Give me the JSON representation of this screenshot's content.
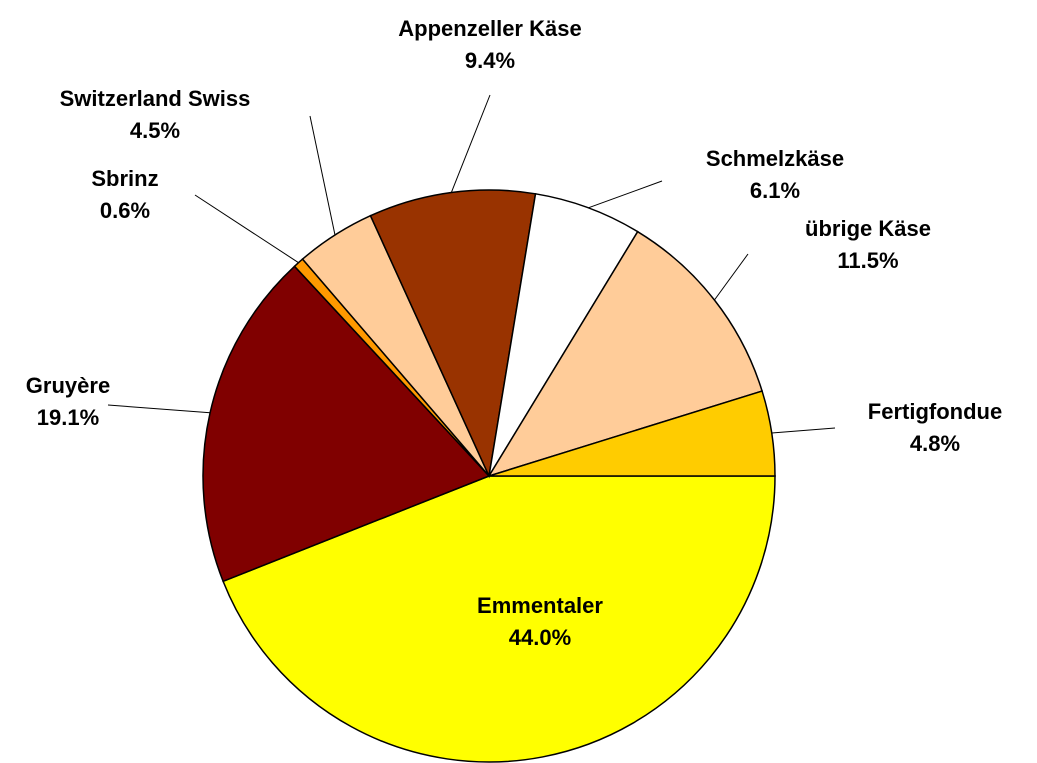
{
  "chart_data": {
    "type": "pie",
    "categories": [
      "Emmentaler",
      "Gruyère",
      "Sbrinz",
      "Switzerland Swiss",
      "Appenzeller Käse",
      "Schmelzkäse",
      "übrige Käse",
      "Fertigfondue"
    ],
    "values": [
      44.0,
      19.1,
      0.6,
      4.5,
      9.4,
      6.1,
      11.5,
      4.8
    ],
    "value_labels": [
      "44.0%",
      "19.1%",
      "0.6%",
      "4.5%",
      "9.4%",
      "6.1%",
      "11.5%",
      "4.8%"
    ],
    "colors": [
      "#ffff00",
      "#800000",
      "#ff9900",
      "#ffcc99",
      "#993300",
      "#ffffff",
      "#ffcc99",
      "#ffcc00"
    ]
  }
}
